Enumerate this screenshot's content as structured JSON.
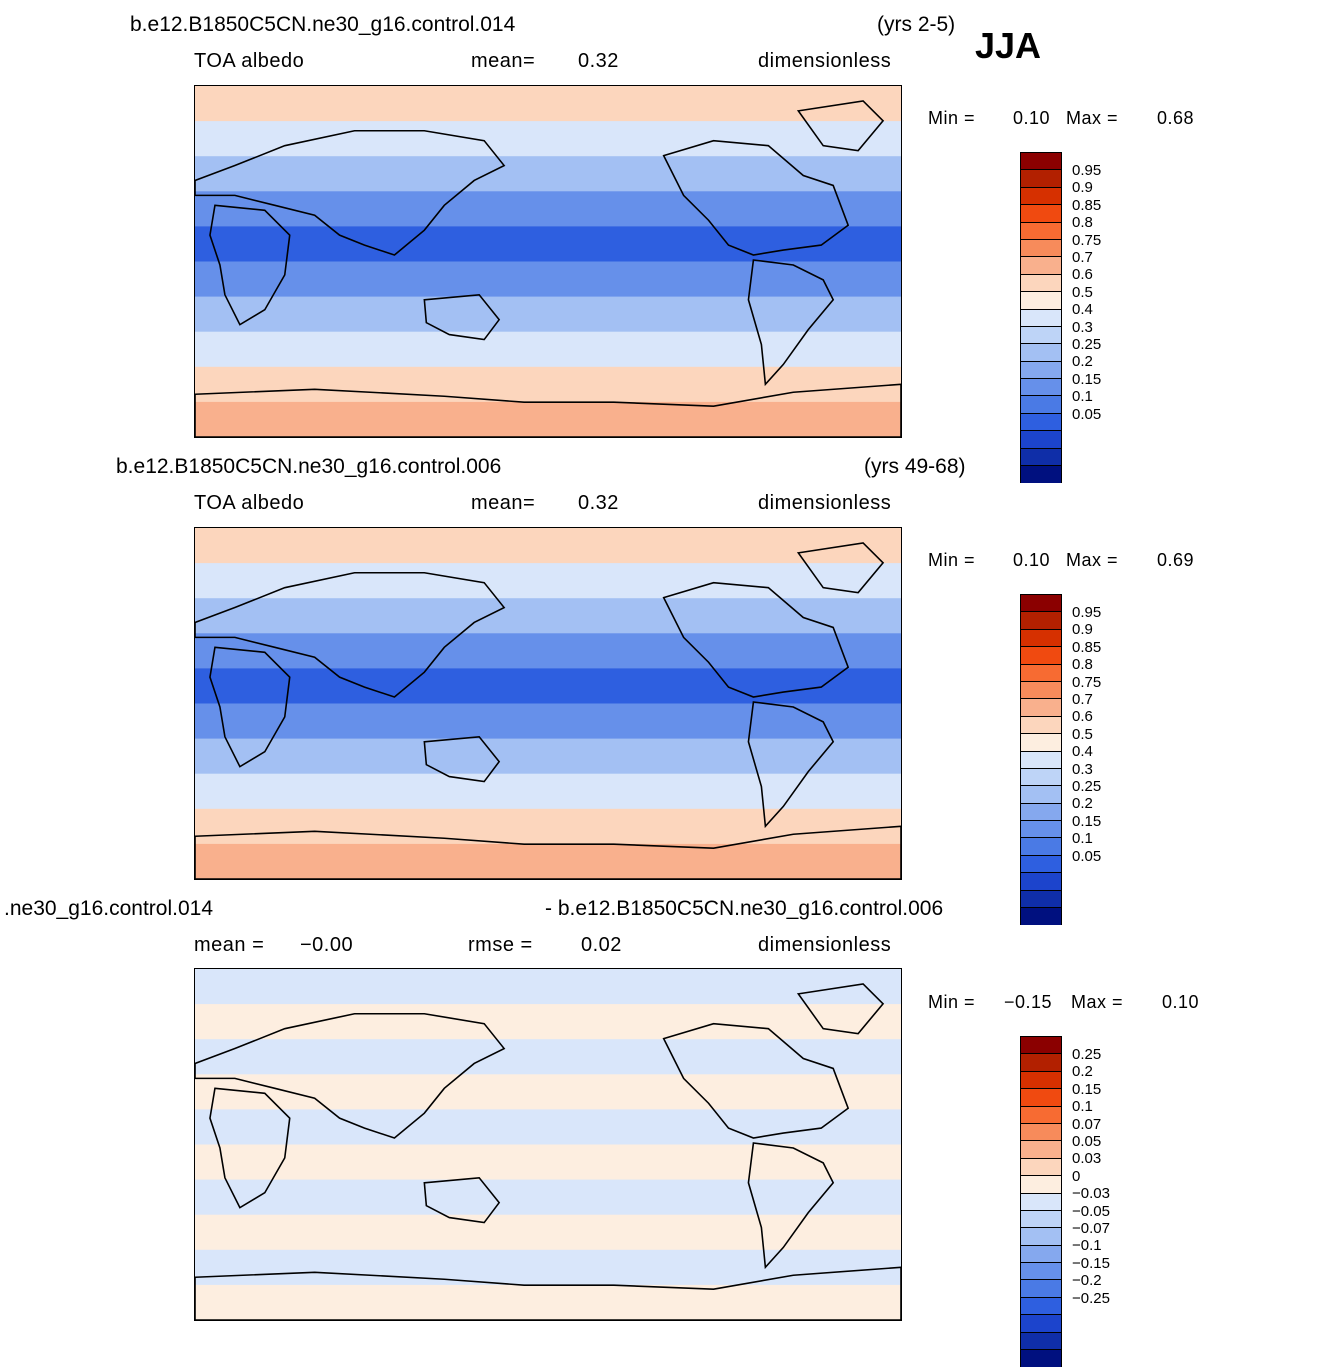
{
  "season": "JJA",
  "panels": [
    {
      "id": "top",
      "run": "b.e12.B1850C5CN.ne30_g16.control.014",
      "years": "(yrs 2-5)",
      "variable": "TOA albedo",
      "stat1_label": "mean=",
      "stat1_value": "0.32",
      "units": "dimensionless",
      "min_label": "Min =",
      "min_value": "0.10",
      "max_label": "Max =",
      "max_value": "0.68",
      "colorbar": {
        "labels": [
          "0.95",
          "0.9",
          "0.85",
          "0.8",
          "0.75",
          "0.7",
          "0.6",
          "0.5",
          "0.4",
          "0.3",
          "0.25",
          "0.2",
          "0.15",
          "0.1",
          "0.05"
        ],
        "colors": [
          "#8b0000",
          "#b22000",
          "#d63000",
          "#f04a10",
          "#f76b32",
          "#f78b5b",
          "#f9b08d",
          "#fcd6bd",
          "#fdeee0",
          "#d9e6fa",
          "#bed4f7",
          "#a3c0f3",
          "#85a8ee",
          "#6690ea",
          "#4a7ae5",
          "#2e5fe0",
          "#1c44cc",
          "#0f2ea8",
          "#00107f"
        ]
      },
      "map_image": {
        "field": "TOA albedo",
        "bands": [
          "#fcd6bd",
          "#d9e6fa",
          "#a3c0f3",
          "#6690ea",
          "#2e5fe0",
          "#6690ea",
          "#a3c0f3",
          "#d9e6fa",
          "#fcd6bd",
          "#f9b08d"
        ]
      }
    },
    {
      "id": "middle",
      "run": "b.e12.B1850C5CN.ne30_g16.control.006",
      "years": "(yrs 49-68)",
      "variable": "TOA albedo",
      "stat1_label": "mean=",
      "stat1_value": "0.32",
      "units": "dimensionless",
      "min_label": "Min =",
      "min_value": "0.10",
      "max_label": "Max =",
      "max_value": "0.69",
      "colorbar": {
        "labels": [
          "0.95",
          "0.9",
          "0.85",
          "0.8",
          "0.75",
          "0.7",
          "0.6",
          "0.5",
          "0.4",
          "0.3",
          "0.25",
          "0.2",
          "0.15",
          "0.1",
          "0.05"
        ],
        "colors": [
          "#8b0000",
          "#b22000",
          "#d63000",
          "#f04a10",
          "#f76b32",
          "#f78b5b",
          "#f9b08d",
          "#fcd6bd",
          "#fdeee0",
          "#d9e6fa",
          "#bed4f7",
          "#a3c0f3",
          "#85a8ee",
          "#6690ea",
          "#4a7ae5",
          "#2e5fe0",
          "#1c44cc",
          "#0f2ea8",
          "#00107f"
        ]
      },
      "map_image": {
        "field": "TOA albedo",
        "bands": [
          "#fcd6bd",
          "#d9e6fa",
          "#a3c0f3",
          "#6690ea",
          "#2e5fe0",
          "#6690ea",
          "#a3c0f3",
          "#d9e6fa",
          "#fcd6bd",
          "#f9b08d"
        ]
      }
    },
    {
      "id": "difference",
      "run_left": ".ne30_g16.control.014",
      "run_right": "- b.e12.B1850C5CN.ne30_g16.control.006",
      "stat1_label": "mean =",
      "stat1_value": "−0.00",
      "stat2_label": "rmse =",
      "stat2_value": "0.02",
      "units": "dimensionless",
      "min_label": "Min =",
      "min_value": "−0.15",
      "max_label": "Max =",
      "max_value": "0.10",
      "colorbar": {
        "labels": [
          "0.25",
          "0.2",
          "0.15",
          "0.1",
          "0.07",
          "0.05",
          "0.03",
          "0",
          "−0.03",
          "−0.05",
          "−0.07",
          "−0.1",
          "−0.15",
          "−0.2",
          "−0.25"
        ],
        "colors": [
          "#8b0000",
          "#b22000",
          "#d63000",
          "#f04a10",
          "#f76b32",
          "#f78b5b",
          "#f9b08d",
          "#fcd6bd",
          "#fdeee0",
          "#d9e6fa",
          "#bed4f7",
          "#a3c0f3",
          "#85a8ee",
          "#6690ea",
          "#4a7ae5",
          "#2e5fe0",
          "#1c44cc",
          "#0f2ea8",
          "#00107f"
        ]
      },
      "map_image": {
        "field": "TOA albedo difference",
        "bands": [
          "#d9e6fa",
          "#fdeee0",
          "#d9e6fa",
          "#fdeee0",
          "#d9e6fa",
          "#fdeee0",
          "#d9e6fa",
          "#fdeee0",
          "#d9e6fa",
          "#fdeee0"
        ]
      }
    }
  ]
}
